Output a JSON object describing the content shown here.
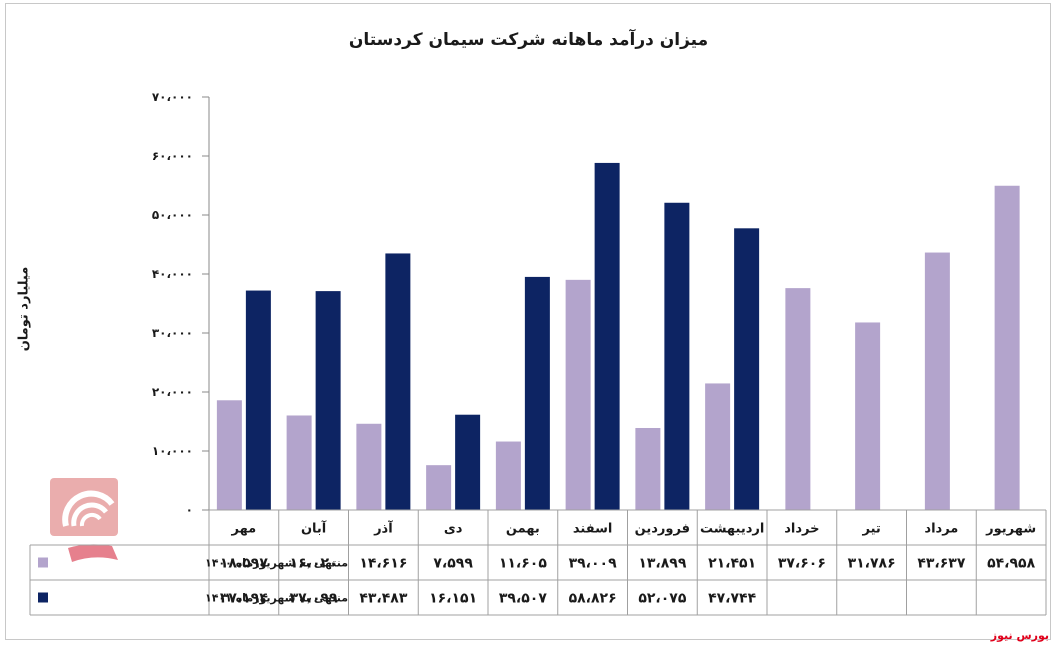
{
  "chart_data": {
    "type": "bar",
    "title": "میزان درآمد ماهانه شرکت سیمان کردستان",
    "ylabel": "میلیارد تومان",
    "xlabel": "",
    "ylim": [
      0,
      70000
    ],
    "yticks": [
      0,
      10000,
      20000,
      30000,
      40000,
      50000,
      60000,
      70000
    ],
    "ytick_labels": [
      "۰",
      "۱۰،۰۰۰",
      "۲۰،۰۰۰",
      "۳۰،۰۰۰",
      "۴۰،۰۰۰",
      "۵۰،۰۰۰",
      "۶۰،۰۰۰",
      "۷۰،۰۰۰"
    ],
    "categories": [
      "مهر",
      "آبان",
      "آذر",
      "دی",
      "بهمن",
      "اسفند",
      "فروردین",
      "اردیبهشت",
      "خرداد",
      "تیر",
      "مرداد",
      "شهریور"
    ],
    "series": [
      {
        "name": "منتهی به شهریورماه ۱۴۰۰",
        "color": "#b3a4cc",
        "values": [
          18597,
          16020,
          14616,
          7599,
          11605,
          39009,
          13899,
          21451,
          37606,
          31786,
          43637,
          54958
        ],
        "labels": [
          "۱۸،۵۹۷",
          "۱۶،۰۲۰",
          "۱۴،۶۱۶",
          "۷،۵۹۹",
          "۱۱،۶۰۵",
          "۳۹،۰۰۹",
          "۱۳،۸۹۹",
          "۲۱،۴۵۱",
          "۳۷،۶۰۶",
          "۳۱،۷۸۶",
          "۴۳،۶۳۷",
          "۵۴،۹۵۸"
        ]
      },
      {
        "name": "منتهی به شهریورماه ۱۴۰۱",
        "color": "#0d2463",
        "values": [
          37194,
          37099,
          43483,
          16151,
          39507,
          58826,
          52075,
          47744,
          null,
          null,
          null,
          null
        ],
        "labels": [
          "۳۷،۱۹۴",
          "۳۷،۰۹۹",
          "۴۳،۴۸۳",
          "۱۶،۱۵۱",
          "۳۹،۵۰۷",
          "۵۸،۸۲۶",
          "۵۲،۰۷۵",
          "۴۷،۷۴۴",
          "",
          "",
          "",
          ""
        ]
      }
    ],
    "grid": true,
    "legend": "data-table",
    "watermark_text": "بورس نیوز",
    "source": "بورس نیوز"
  }
}
